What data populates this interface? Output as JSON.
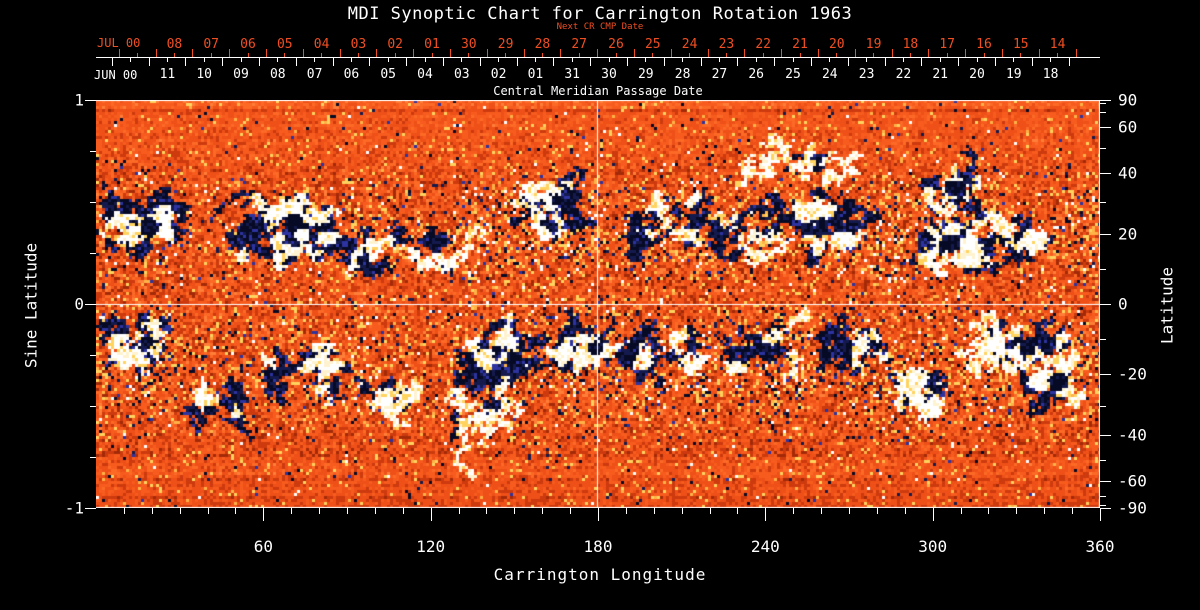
{
  "header": {
    "title": "MDI Synoptic Chart for Carrington Rotation 1963"
  },
  "top_axis": {
    "subtitle": "Next CR CMP Date",
    "axis_title": "Central Meridian Passage Date",
    "next_rotation": {
      "month_label": "JUL 00",
      "day_labels": [
        "08",
        "07",
        "06",
        "05",
        "04",
        "03",
        "02",
        "01",
        "30",
        "29",
        "28",
        "27",
        "26",
        "25",
        "24",
        "23",
        "22",
        "21",
        "20",
        "19",
        "18",
        "17",
        "16",
        "15",
        "14"
      ]
    },
    "current_rotation": {
      "month_label": "JUN 00",
      "day_labels": [
        "11",
        "10",
        "09",
        "08",
        "07",
        "06",
        "05",
        "04",
        "03",
        "02",
        "01",
        "31",
        "30",
        "29",
        "28",
        "27",
        "26",
        "25",
        "24",
        "23",
        "22",
        "21",
        "20",
        "19",
        "18"
      ]
    }
  },
  "left_axis": {
    "title": "Sine Latitude",
    "tick_labels": [
      "1",
      "0",
      "-1"
    ],
    "tick_values": [
      1,
      0,
      -1
    ],
    "minor_tick_values": [
      0.75,
      0.5,
      0.25,
      -0.25,
      -0.5,
      -0.75
    ]
  },
  "right_axis": {
    "title": "Latitude",
    "tick_labels": [
      "90",
      "60",
      "40",
      "20",
      "0",
      "-20",
      "-40",
      "-60",
      "-90"
    ],
    "tick_values": [
      90,
      60,
      40,
      20,
      0,
      -20,
      -40,
      -60,
      -90
    ],
    "minor_tick_values": [
      80,
      70,
      50,
      30,
      10,
      -10,
      -30,
      -50,
      -70,
      -80
    ]
  },
  "bottom_axis": {
    "title": "Carrington Longitude",
    "tick_labels": [
      "60",
      "120",
      "180",
      "240",
      "300",
      "360"
    ],
    "tick_values": [
      60,
      120,
      180,
      240,
      300,
      360
    ]
  },
  "colors": {
    "background": "#000000",
    "text": "#ffffff",
    "accent_red": "#ef4f22",
    "map_quiet_low": "#a32a08",
    "map_quiet_mid": "#ee5018",
    "map_quiet_high": "#ff7e38",
    "map_negative_dark": "#070a24",
    "map_negative_blue": "#2d33a0",
    "map_positive_white": "#ffffff",
    "map_positive_yellow": "#ffd35e"
  },
  "chart_data": {
    "type": "heatmap",
    "title": "MDI Synoptic Chart for Carrington Rotation 1963",
    "xlabel": "Carrington Longitude",
    "ylabel_left": "Sine Latitude",
    "ylabel_right": "Latitude",
    "xlim": [
      0,
      360
    ],
    "ylim_sine_latitude": [
      -1,
      1
    ],
    "right_axis_latitude_ticks": [
      90,
      60,
      40,
      20,
      0,
      -20,
      -40,
      -60,
      -90
    ],
    "reference_lines": {
      "longitude": 180,
      "sine_latitude": 0
    },
    "legend": "quiet sun = orange-red noise; negative field = black/blue; positive field = white/yellow",
    "activity_band_centers_sine_latitude": [
      0.37,
      -0.31
    ],
    "active_regions": [
      [
        16,
        0.39,
        10,
        0.09,
        26,
        8
      ],
      [
        68,
        0.37,
        16,
        0.15,
        40,
        14
      ],
      [
        99,
        0.27,
        7,
        0.06,
        6,
        4
      ],
      [
        124,
        0.24,
        8,
        0.07,
        8,
        5
      ],
      [
        163,
        0.47,
        9,
        0.11,
        18,
        8
      ],
      [
        202,
        0.39,
        14,
        0.11,
        14,
        5
      ],
      [
        233,
        0.37,
        8,
        0.07,
        6,
        3
      ],
      [
        262,
        0.38,
        11,
        0.1,
        16,
        7
      ],
      [
        307,
        0.57,
        9,
        0.07,
        12,
        4
      ],
      [
        307,
        0.31,
        10,
        0.09,
        18,
        10
      ],
      [
        333,
        0.33,
        7,
        0.06,
        8,
        6
      ],
      [
        315,
        0.2,
        7,
        0.04,
        2,
        6
      ],
      [
        249,
        0.67,
        25,
        0.05,
        2,
        10
      ],
      [
        16,
        -0.2,
        9,
        0.08,
        14,
        6
      ],
      [
        43,
        -0.53,
        8,
        0.07,
        8,
        3
      ],
      [
        77,
        -0.31,
        13,
        0.12,
        12,
        6
      ],
      [
        105,
        -0.48,
        9,
        0.06,
        4,
        7
      ],
      [
        141,
        -0.31,
        13,
        0.12,
        26,
        8
      ],
      [
        173,
        -0.22,
        10,
        0.08,
        12,
        10
      ],
      [
        202,
        -0.24,
        13,
        0.1,
        10,
        4
      ],
      [
        238,
        -0.2,
        13,
        0.09,
        10,
        4
      ],
      [
        269,
        -0.24,
        10,
        0.1,
        14,
        6
      ],
      [
        298,
        -0.45,
        10,
        0.07,
        8,
        8
      ],
      [
        323,
        -0.21,
        6,
        0.06,
        4,
        9
      ],
      [
        334,
        -0.23,
        5,
        0.05,
        9,
        3
      ],
      [
        341,
        -0.37,
        7,
        0.07,
        10,
        9
      ],
      [
        138,
        -0.53,
        11,
        0.05,
        3,
        8
      ]
    ],
    "strong_spots": [
      [
        25,
        0.35,
        8,
        "w"
      ],
      [
        74,
        0.34,
        6,
        "w"
      ],
      [
        158,
        0.38,
        4,
        "w"
      ],
      [
        313,
        0.3,
        9,
        "w"
      ],
      [
        335,
        0.32,
        4,
        "w"
      ],
      [
        11,
        -0.26,
        5,
        "w"
      ],
      [
        168,
        -0.22,
        6,
        "w"
      ],
      [
        295,
        -0.47,
        6,
        "w"
      ],
      [
        323,
        -0.2,
        8,
        "w"
      ],
      [
        338,
        -0.38,
        10,
        "w"
      ],
      [
        270,
        0.33,
        4,
        "w"
      ],
      [
        104,
        -0.48,
        5,
        "w"
      ],
      [
        315,
        0.2,
        4,
        "w"
      ],
      [
        19,
        0.37,
        8,
        "d"
      ],
      [
        71,
        0.4,
        9,
        "d"
      ],
      [
        165,
        0.51,
        5,
        "d"
      ],
      [
        306,
        0.3,
        9,
        "d"
      ],
      [
        307,
        0.58,
        6,
        "d"
      ],
      [
        331,
        0.33,
        4,
        "d"
      ],
      [
        18,
        -0.19,
        6,
        "d"
      ],
      [
        179,
        -0.22,
        7,
        "d"
      ],
      [
        334,
        -0.22,
        7,
        "d"
      ],
      [
        345,
        -0.38,
        9,
        "d"
      ],
      [
        301,
        -0.42,
        4,
        "d"
      ],
      [
        269,
        -0.22,
        5,
        "d"
      ],
      [
        41,
        -0.52,
        5,
        "d"
      ],
      [
        260,
        0.4,
        5,
        "d"
      ]
    ]
  }
}
